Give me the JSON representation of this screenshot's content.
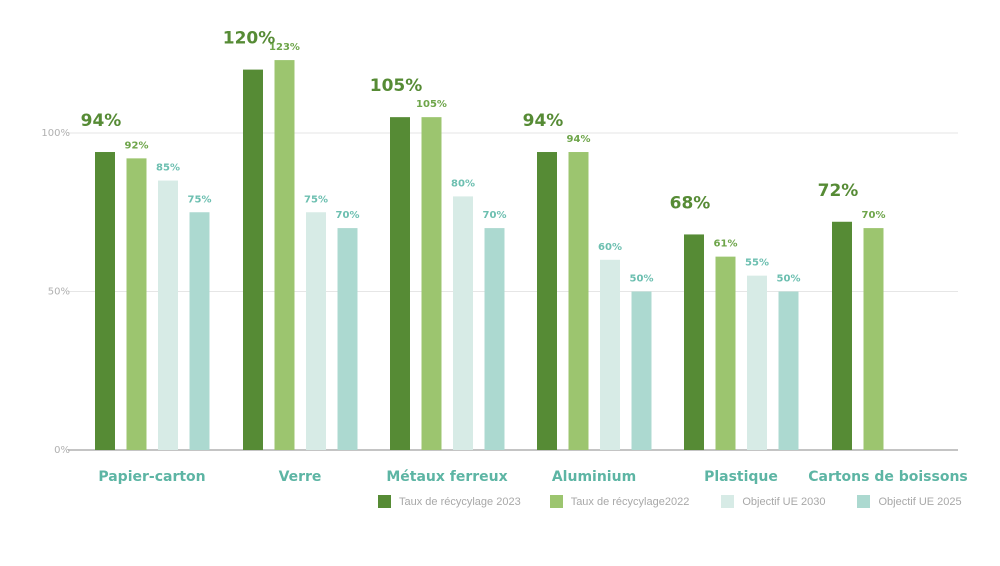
{
  "chart_data": {
    "type": "bar",
    "categories": [
      "Papier-carton",
      "Verre",
      "Métaux ferreux",
      "Aluminium",
      "Plastique",
      "Cartons de boissons"
    ],
    "series": [
      {
        "name": "Taux de récycylage 2023",
        "color": "#568b35",
        "values": [
          94,
          120,
          105,
          94,
          68,
          72
        ],
        "labels": [
          "94%",
          "120%",
          "105%",
          "94%",
          "68%",
          "72%"
        ]
      },
      {
        "name": "Taux de récycylage2022",
        "color": "#9cc56f",
        "values": [
          92,
          123,
          105,
          94,
          61,
          70
        ],
        "labels": [
          "92%",
          "123%",
          "105%",
          "94%",
          "61%",
          "70%"
        ]
      },
      {
        "name": "Objectif UE 2030",
        "color": "#d7ebe6",
        "values": [
          85,
          75,
          80,
          60,
          55,
          null
        ],
        "labels": [
          "85%",
          "75%",
          "80%",
          "60%",
          "55%",
          ""
        ]
      },
      {
        "name": "Objectif UE 2025",
        "color": "#acd9d0",
        "values": [
          75,
          70,
          70,
          50,
          50,
          null
        ],
        "labels": [
          "75%",
          "70%",
          "70%",
          "50%",
          "50%",
          ""
        ]
      }
    ],
    "yticks": [
      "0%",
      "50%",
      "100%"
    ],
    "ytick_values": [
      0,
      50,
      100
    ],
    "ylim": [
      0,
      126
    ],
    "grid": true,
    "legend_position": "bottom-right",
    "colors": {
      "category_label": "#5db5a4",
      "label_dark": "#568b35",
      "label_light": "#6ea54a",
      "label_teal": "#6cbfb0",
      "axis": "#b0b0b0",
      "grid": "#e6e6e6"
    }
  },
  "legend": [
    {
      "label": "Taux de récycylage 2023",
      "color": "#568b35"
    },
    {
      "label": "Taux de récycylage2022",
      "color": "#9cc56f"
    },
    {
      "label": "Objectif UE 2030",
      "color": "#d7ebe6"
    },
    {
      "label": "Objectif UE 2025",
      "color": "#acd9d0"
    }
  ]
}
